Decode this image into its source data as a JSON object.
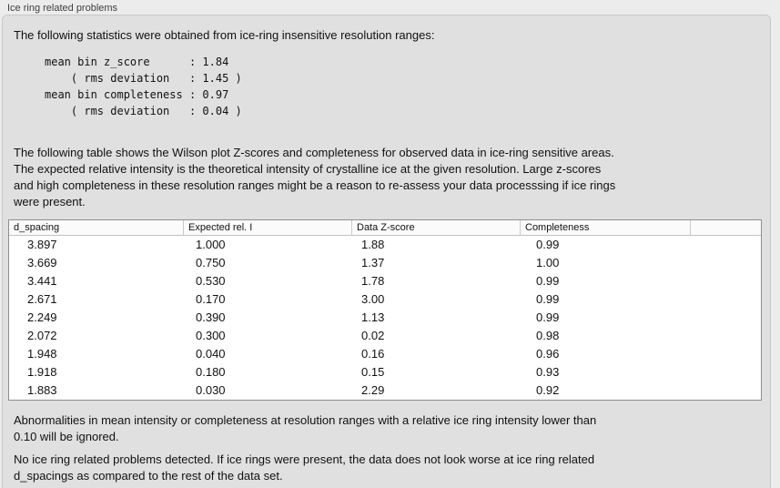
{
  "panel": {
    "title": "Ice ring related problems",
    "intro": "The following statistics were obtained from ice-ring insensitive resolution ranges:",
    "stats_block": "mean bin z_score      : 1.84\n    ( rms deviation   : 1.45 )\nmean bin completeness : 0.97\n    ( rms deviation   : 0.04 )",
    "stats": {
      "mean_bin_z_score": 1.84,
      "z_score_rms_deviation": 1.45,
      "mean_bin_completeness": 0.97,
      "completeness_rms_deviation": 0.04
    },
    "table_description": "The following table shows the Wilson plot Z-scores and completeness for observed data in ice-ring sensitive areas.\nThe expected relative intensity is the theoretical intensity of crystalline ice at the given resolution. Large z-scores\nand high completeness in these resolution ranges might be a reason to re-assess your data processsing if ice rings\nwere present.",
    "ignore_note": "Abnormalities in mean intensity or completeness at resolution ranges with a relative ice ring intensity lower than\n0.10 will be ignored.",
    "conclusion": "No ice ring related problems detected. If ice rings were present, the data does not look worse at ice ring related\nd_spacings as compared to the rest of the data set."
  },
  "table": {
    "columns": [
      "d_spacing",
      "Expected rel. I",
      "Data Z-score",
      "Completeness",
      ""
    ],
    "rows": [
      [
        "3.897",
        "1.000",
        "1.88",
        "0.99"
      ],
      [
        "3.669",
        "0.750",
        "1.37",
        "1.00"
      ],
      [
        "3.441",
        "0.530",
        "1.78",
        "0.99"
      ],
      [
        "2.671",
        "0.170",
        "3.00",
        "0.99"
      ],
      [
        "2.249",
        "0.390",
        "1.13",
        "0.99"
      ],
      [
        "2.072",
        "0.300",
        "0.02",
        "0.98"
      ],
      [
        "1.948",
        "0.040",
        "0.16",
        "0.96"
      ],
      [
        "1.918",
        "0.180",
        "0.15",
        "0.93"
      ],
      [
        "1.883",
        "0.030",
        "2.29",
        "0.92"
      ]
    ]
  },
  "colors": {
    "outer_background": "#ececec",
    "panel_background": "#e0e0e0",
    "table_background": "#ffffff",
    "table_border": "#8e8e8e",
    "text": "#111111"
  }
}
